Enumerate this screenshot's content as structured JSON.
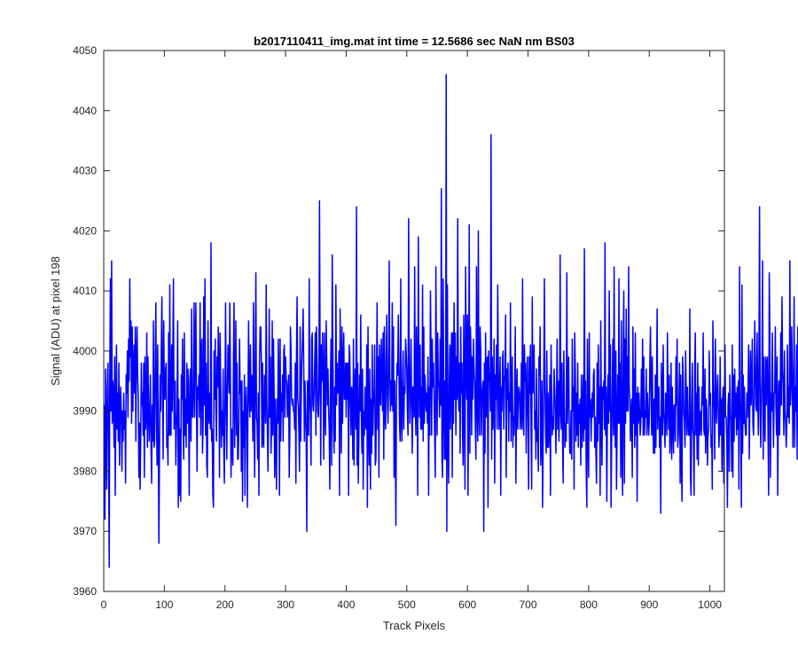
{
  "chart_data": {
    "type": "line",
    "title": "b2017110411_img.mat int time = 12.5686 sec  NaN nm BS03",
    "xlabel": "Track Pixels",
    "ylabel": "Signal (ADU) at pixel 198",
    "xlim": [
      0,
      1024
    ],
    "ylim": [
      3960,
      4050
    ],
    "xticks": [
      0,
      100,
      200,
      300,
      400,
      500,
      600,
      700,
      800,
      900,
      1000
    ],
    "yticks": [
      3960,
      3970,
      3980,
      3990,
      4000,
      4010,
      4020,
      4030,
      4040,
      4050
    ],
    "grid": false,
    "box": true,
    "line_color": "#0000ff",
    "series": [
      {
        "x_start": 1,
        "x_step": 1,
        "values": [
          3991,
          3972,
          3997,
          3986,
          3977,
          3994,
          3998,
          3985,
          3964,
          3996,
          4012,
          3990,
          4015,
          3988,
          3995,
          3993,
          3984,
          3999,
          3976,
          3991,
          4001,
          3987,
          3993,
          3985,
          3998,
          3981,
          3990,
          3994,
          3989,
          3980,
          3990,
          3985,
          3993,
          3987,
          3990,
          3978,
          3996,
          3993,
          4000,
          3989,
          4002,
          3995,
          4012,
          3999,
          4005,
          3988,
          4004,
          3990,
          3997,
          4001,
          3993,
          4004,
          3985,
          3999,
          4004,
          3996,
          3992,
          3979,
          3988,
          3977,
          3985,
          3998,
          3991,
          3993,
          3986,
          3998,
          3979,
          3999,
          3987,
          3989,
          4003,
          3984,
          3999,
          3990,
          3985,
          3990,
          3996,
          3984,
          3978,
          3991,
          3985,
          4005,
          3984,
          3985,
          3999,
          4008,
          3989,
          3981,
          4001,
          3985,
          3968,
          3983,
          3996,
          3990,
          4001,
          4009,
          3992,
          3982,
          4005,
          3992,
          3992,
          3997,
          3998,
          3984,
          3986,
          3981,
          4003,
          3986,
          4011,
          3986,
          3986,
          4001,
          3990,
          4000,
          4012,
          3987,
          3993,
          3995,
          3981,
          3987,
          3990,
          4005,
          3974,
          3992,
          3976,
          3987,
          3975,
          3996,
          3992,
          4002,
          3987,
          3982,
          4003,
          3986,
          3992,
          3984,
          3998,
          3988,
          3997,
          3990,
          3976,
          3995,
          3997,
          3985,
          4007,
          3989,
          3989,
          3994,
          4008,
          3989,
          4001,
          4008,
          3992,
          3980,
          3994,
          3992,
          3996,
          3989,
          4008,
          3986,
          4000,
          4002,
          3983,
          3988,
          4009,
          3991,
          4012,
          3986,
          3998,
          3981,
          3979,
          4005,
          3990,
          3988,
          3993,
          3987,
          4018,
          3985,
          3987,
          3976,
          3974,
          4000,
          3992,
          4002,
          3990,
          3985,
          3999,
          3994,
          4004,
          3998,
          3979,
          4003,
          3994,
          3984,
          3990,
          3986,
          3997,
          3984,
          3978,
          3991,
          4008,
          3992,
          3982,
          3993,
          4001,
          3997,
          3993,
          4008,
          3996,
          3979,
          3987,
          3985,
          3981,
          3999,
          4008,
          3984,
          3993,
          4005,
          3986,
          3998,
          3982,
          3982,
          3988,
          4002,
          3993,
          3995,
          3980,
          3995,
          3975,
          3990,
          3984,
          3996,
          3976,
          3990,
          3994,
          3989,
          3974,
          3992,
          4005,
          3992,
          3989,
          4001,
          3990,
          3996,
          3994,
          3985,
          4008,
          3992,
          3979,
          3999,
          4013,
          3989,
          3988,
          3982,
          3993,
          3976,
          3998,
          4004,
          4004,
          3999,
          3984,
          3998,
          3985,
          3984,
          3996,
          3994,
          3988,
          4011,
          3992,
          3987,
          3980,
          3990,
          4007,
          3989,
          3999,
          3983,
          3988,
          4005,
          3986,
          4002,
          3994,
          3979,
          3992,
          3985,
          3977,
          3992,
          3988,
          4002,
          3993,
          3976,
          4002,
          3985,
          3993,
          3990,
          3996,
          3985,
          4000,
          4001,
          3989,
          3999,
          3995,
          3995,
          3989,
          3992,
          3996,
          3979,
          3986,
          4004,
          4000,
          3992,
          3991,
          3992,
          3990,
          3990,
          3987,
          3998,
          3978,
          3999,
          4009,
          3992,
          3991,
          3986,
          3980,
          4004,
          3985,
          3994,
          3999,
          4002,
          4007,
          3997,
          3985,
          3995,
          3990,
          3986,
          3970,
          3995,
          3988,
          3986,
          4012,
          3993,
          3989,
          3981,
          4002,
          4003,
          3991,
          3990,
          3993,
          3998,
          4003,
          3986,
          4004,
          3998,
          3990,
          3989,
          3993,
          4025,
          3998,
          3981,
          4001,
          3995,
          4003,
          3996,
          3982,
          4003,
          3990,
          3986,
          4005,
          3998,
          3991,
          3997,
          3990,
          3987,
          3977,
          3995,
          4002,
          3981,
          4016,
          4001,
          3987,
          3983,
          3994,
          3985,
          4011,
          3991,
          3998,
          3993,
          3994,
          4000,
          3976,
          4007,
          3993,
          3983,
          4004,
          3988,
          3997,
          4003,
          3992,
          3992,
          3998,
          3989,
          3998,
          3992,
          3998,
          3976,
          4001,
          3999,
          3991,
          3986,
          3994,
          3993,
          3982,
          4002,
          3981,
          3994,
          3997,
          3987,
          4024,
          3981,
          3998,
          3978,
          3986,
          3996,
          3990,
          4006,
          3989,
          3983,
          3997,
          3977,
          3990,
          3986,
          3994,
          3988,
          3987,
          4001,
          3974,
          4004,
          3986,
          3981,
          3997,
          3977,
          3992,
          3983,
          4001,
          3986,
          3991,
          3993,
          4001,
          3981,
          3982,
          3994,
          4008,
          3987,
          3999,
          3979,
          4001,
          3995,
          3991,
          4002,
          3997,
          3990,
          4003,
          3982,
          4004,
          3989,
          3987,
          3999,
          4006,
          3992,
          3988,
          3996,
          4015,
          3996,
          3990,
          3995,
          3991,
          4008,
          3990,
          4004,
          3979,
          3995,
          3985,
          3971,
          3994,
          3998,
          3996,
          4006,
          3997,
          3988,
          3985,
          4012,
          3989,
          3985,
          3994,
          4000,
          3987,
          3994,
          3993,
          4002,
          4000,
          3997,
          3990,
          3986,
          4022,
          3998,
          3988,
          3994,
          4002,
          3990,
          3983,
          3994,
          3994,
          3989,
          4014,
          3991,
          3986,
          4004,
          3995,
          3976,
          4019,
          3998,
          3989,
          4001,
          3987,
          3994,
          3987,
          4011,
          3985,
          4004,
          3988,
          3996,
          3993,
          3990,
          3993,
          3988,
          3999,
          3976,
          3994,
          3986,
          4010,
          3999,
          3986,
          4002,
          3994,
          3998,
          3992,
          3986,
          3979,
          4014,
          3996,
          3986,
          4003,
          3995,
          3994,
          3989,
          4002,
          3991,
          4027,
          3982,
          3979,
          4012,
          3992,
          3982,
          3995,
          3982,
          4046,
          3970,
          4011,
          3985,
          3978,
          3994,
          4001,
          3987,
          3999,
          4003,
          3979,
          4003,
          3988,
          4008,
          3992,
          4003,
          3986,
          3999,
          3992,
          4022,
          3994,
          3990,
          3998,
          3983,
          4004,
          3993,
          3998,
          3986,
          3981,
          4006,
          3994,
          3977,
          4014,
          3998,
          3992,
          4006,
          3976,
          3992,
          4021,
          3983,
          4004,
          3999,
          3986,
          3999,
          3992,
          4002,
          3997,
          3995,
          3988,
          3982,
          4014,
          3993,
          3985,
          4020,
          3990,
          3986,
          4004,
          4000,
          3986,
          3992,
          3994,
          3995,
          3970,
          3998,
          3983,
          4003,
          3989,
          3998,
          3999,
          3974,
          4000,
          3995,
          3996,
          3990,
          4036,
          3982,
          3999,
          3987,
          3992,
          4002,
          3978,
          3996,
          3992,
          4001,
          3987,
          4011,
          3998,
          3987,
          3993,
          3999,
          3976,
          3994,
          3990,
          3999,
          4000,
          3987,
          3995,
          3996,
          4006,
          3979,
          3997,
          3992,
          3998,
          3985,
          3993,
          3990,
          4008,
          3985,
          3994,
          3999,
          3984,
          3989,
          3986,
          3993,
          4004,
          3978,
          3991,
          3997,
          3987,
          3992,
          3994,
          3993,
          3987,
          3989,
          3998,
          3987,
          4012,
          3990,
          3986,
          4001,
          3995,
          3998,
          3983,
          3993,
          3999,
          3989,
          3977,
          3999,
          3993,
          4001,
          3988,
          3977,
          4009,
          3993,
          3996,
          4001,
          3987,
          3990,
          3982,
          3997,
          3985,
          3987,
          3980,
          3999,
          3996,
          4004,
          3981,
          3986,
          3995,
          3974,
          3986,
          3996,
          4012,
          3994,
          3986,
          3983,
          4000,
          3984,
          3993,
          3984,
          3988,
          3996,
          3976,
          4001,
          3993,
          3986,
          3989,
          3987,
          3997,
          3994,
          3990,
          3983,
          3992,
          4002,
          3987,
          3995,
          3985,
          3990,
          4016,
          3990,
          3987,
          3998,
          3985,
          3978,
          4000,
          3992,
          3984,
          3988,
          3985,
          4013,
          3988,
          3994,
          3999,
          3988,
          3983,
          3983,
          3990,
          3982,
          4002,
          3990,
          3994,
          3977,
          4003,
          3997,
          3985,
          3993,
          3986,
          3998,
          3984,
          3991,
          3988,
          3992,
          3981,
          3996,
          3984,
          3990,
          3996,
          3985,
          4017,
          3987,
          3995,
          3980,
          3974,
          4002,
          3986,
          3979,
          4003,
          3989,
          3992,
          3985,
          3990,
          3993,
          3989,
          3996,
          3997,
          3984,
          3989,
          3983,
          3978,
          3998,
          3985,
          4001,
          3988,
          3994,
          3976,
          4005,
          3990,
          3981,
          3994,
          3992,
          3995,
          3987,
          4018,
          3986,
          3994,
          3975,
          3990,
          3996,
          3988,
          4010,
          3990,
          4001,
          3974,
          3985,
          3994,
          4002,
          3986,
          4014,
          3989,
          3984,
          4000,
          3977,
          3987,
          3996,
          3988,
          4012,
          3988,
          3998,
          3979,
          4005,
          3986,
          3976,
          3999,
          4010,
          3978,
          4002,
          3988,
          4007,
          3990,
          3999,
          3990,
          4014,
          3994,
          3992,
          3985,
          3990,
          3992,
          3979,
          4004,
          3988,
          3997,
          3984,
          4003,
          3986,
          3993,
          3975,
          3994,
          3988,
          3993,
          3990,
          3986,
          3988,
          3997,
          3989,
          4002,
          3986,
          3999,
          3986,
          3990,
          3989,
          3997,
          3986,
          3993,
          3990,
          3986,
          3988,
          3998,
          4004,
          3993,
          3986,
          3999,
          3988,
          3983,
          3992,
          3983,
          3996,
          3984,
          3993,
          4007,
          3987,
          3994,
          3994,
          3984,
          3989,
          3973,
          3998,
          3992,
          3986,
          4001,
          3990,
          3988,
          3984,
          3993,
          3991,
          3986,
          4003,
          3992,
          3987,
          3996,
          3983,
          3986,
          3998,
          3982,
          3994,
          3988,
          3983,
          3991,
          3991,
          3985,
          3999,
          3991,
          4002,
          3984,
          3986,
          3991,
          3998,
          3978,
          3996,
          3982,
          3975,
          3999,
          3996,
          3990,
          3988,
          3984,
          4000,
          3993,
          3986,
          3994,
          3988,
          3986,
          3986,
          4007,
          3979,
          3976,
          3991,
          3998,
          3987,
          3986,
          3976,
          3997,
          4003,
          3986,
          3993,
          3982,
          3998,
          3981,
          3994,
          3986,
          3988,
          3990,
          3986,
          3994,
          3991,
          4003,
          3987,
          3986,
          3997,
          3983,
          3992,
          3990,
          3981,
          3986,
          3987,
          4000,
          3991,
          3993,
          3984,
          3986,
          3977,
          4005,
          3994,
          3990,
          3982,
          4002,
          3994,
          3988,
          3993,
          3996,
          3990,
          3984,
          3987,
          3999,
          3986,
          3992,
          3980,
          3992,
          3994,
          3978,
          3993,
          4001,
          3989,
          3989,
          3985,
          3974,
          3991,
          3993,
          3980,
          3996,
          3989,
          3989,
          3980,
          4001,
          3979,
          3996,
          3985,
          3997,
          3989,
          3993,
          3986,
          3994,
          3987,
          3995,
          3977,
          4014,
          3992,
          3987,
          3974,
          4011,
          3983,
          3996,
          3988,
          3994,
          3988,
          3986,
          3986,
          3993,
          3989,
          3994,
          4001,
          3982,
          3991,
          4000,
          3991,
          3994,
          4002,
          3988,
          3986,
          3991,
          4005,
          3999,
          3991,
          3990,
          4003,
          3992,
          3986,
          3999,
          4024,
          3990,
          3984,
          3992,
          3996,
          4015,
          3982,
          3999,
          3989,
          3985,
          3999,
          3991,
          3998,
          3999,
          3986,
          3976,
          4013,
          4003,
          3979,
          3993,
          3990,
          4003,
          3993,
          3984,
          3993,
          3993,
          4004,
          3991,
          3986,
          3999,
          3976,
          3991,
          3995,
          3986,
          3992,
          4003,
          3991,
          4009,
          3997,
          3994,
          3986,
          4000,
          3990,
          3988,
          3984,
          3988,
          4001,
          3989,
          3994,
          3988,
          4015,
          3991,
          3994,
          4004,
          3996,
          3984,
          3992,
          4009,
          3984,
          3994,
          3990,
          4001,
          3982,
          4004,
          3989,
          4007,
          3997,
          4001,
          4002,
          3980,
          4002,
          3990,
          4004,
          3985,
          3992
        ]
      }
    ]
  }
}
